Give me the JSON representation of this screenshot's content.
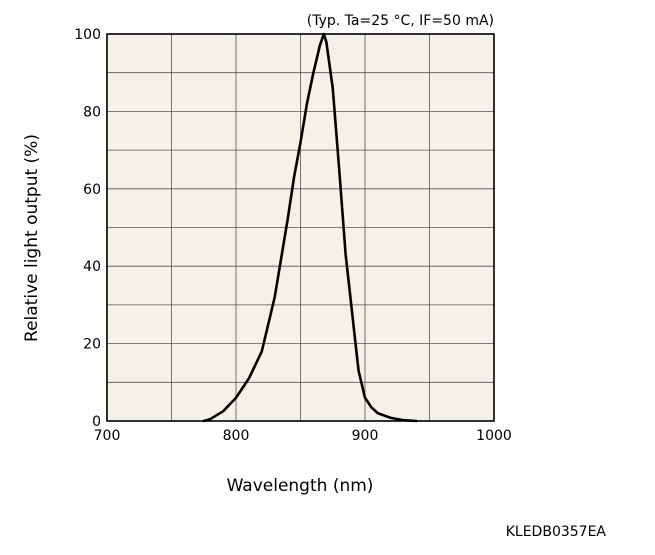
{
  "chart_data": {
    "type": "line",
    "title": "",
    "conditions": "(Typ. Ta=25 °C, IF=50 mA)",
    "xlabel": "Wavelength (nm)",
    "ylabel": "Relative light output (%)",
    "xlim": [
      700,
      1000
    ],
    "ylim": [
      0,
      100
    ],
    "x_ticks": [
      "700",
      "800",
      "900",
      "1000"
    ],
    "y_ticks": [
      "0",
      "20",
      "40",
      "60",
      "80",
      "100"
    ],
    "grid": true,
    "background": "#f3f1e8",
    "line_color": "#000000",
    "series": [
      {
        "x": [
          775,
          780,
          790,
          800,
          810,
          820,
          830,
          840,
          845,
          850,
          855,
          860,
          865,
          868,
          870,
          875,
          880,
          885,
          890,
          895,
          900,
          905,
          910,
          920,
          930,
          940
        ],
        "y": [
          0,
          0.5,
          2.5,
          6,
          11,
          18,
          32,
          52,
          63,
          72,
          82,
          90,
          97,
          100,
          98,
          86,
          65,
          43,
          28,
          13,
          6,
          3.5,
          2,
          0.8,
          0.2,
          0
        ]
      }
    ]
  },
  "document_code": "KLEDB0357EA"
}
